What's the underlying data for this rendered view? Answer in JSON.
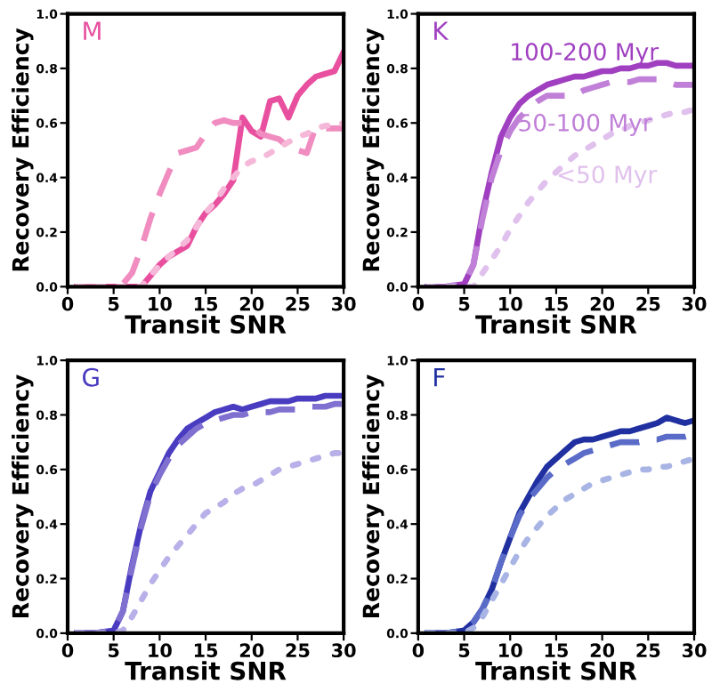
{
  "chart_data": [
    {
      "type": "line",
      "annotations": [
        "M"
      ],
      "xlabel": "Transit SNR",
      "ylabel": "Recovery Efficiency",
      "xlim": [
        0,
        30
      ],
      "xticks": [
        0,
        5,
        10,
        15,
        20,
        25,
        30
      ],
      "ylim": [
        0,
        1
      ],
      "yticks": [
        {
          "value": 0,
          "label": "0.0"
        },
        {
          "value": 0.2,
          "label": "0.2"
        },
        {
          "value": 0.4,
          "label": "0.4"
        },
        {
          "value": 0.6,
          "label": "0.6"
        },
        {
          "value": 0.8,
          "label": "0.8"
        },
        {
          "value": 1,
          "label": "1.0"
        }
      ],
      "grid": false,
      "marker": "none",
      "x": [
        1,
        3,
        5,
        6,
        7,
        8,
        9,
        10,
        11,
        12,
        13,
        14,
        15,
        16,
        17,
        18,
        19,
        20,
        21,
        22,
        23,
        24,
        25,
        26,
        27,
        28,
        29,
        30
      ],
      "series": [
        {
          "color": "#e8509f",
          "line_style": "solid",
          "values": [
            0,
            0,
            0,
            0,
            0,
            0,
            0.04,
            0.08,
            0.11,
            0.13,
            0.15,
            0.22,
            0.27,
            0.3,
            0.34,
            0.39,
            0.62,
            0.57,
            0.55,
            0.68,
            0.69,
            0.62,
            0.7,
            0.74,
            0.77,
            0.78,
            0.79,
            0.86
          ]
        },
        {
          "color": "#f08cc0",
          "line_style": "dashed",
          "values": [
            0,
            0,
            0,
            0.01,
            0.05,
            0.14,
            0.25,
            0.34,
            0.42,
            0.49,
            0.5,
            0.51,
            0.56,
            0.6,
            0.61,
            0.6,
            0.6,
            0.59,
            0.56,
            0.55,
            0.54,
            0.51,
            0.5,
            0.49,
            0.59,
            0.58,
            0.58,
            0.58
          ]
        },
        {
          "color": "#f5b8d8",
          "line_style": "dotted",
          "values": [
            0,
            0,
            0,
            0,
            0,
            0,
            0.04,
            0.08,
            0.11,
            0.14,
            0.17,
            0.22,
            0.27,
            0.31,
            0.36,
            0.4,
            0.44,
            0.46,
            0.47,
            0.49,
            0.51,
            0.53,
            0.55,
            0.56,
            0.58,
            0.59,
            0.59,
            0.6
          ]
        }
      ]
    },
    {
      "type": "line",
      "annotations": [
        "K"
      ],
      "xlabel": "Transit SNR",
      "ylabel": "Recovery Efficiency",
      "xlim": [
        0,
        30
      ],
      "xticks": [
        0,
        5,
        10,
        15,
        20,
        25,
        30
      ],
      "ylim": [
        0,
        1
      ],
      "yticks": [
        {
          "value": 0,
          "label": "0.0"
        },
        {
          "value": 0.2,
          "label": "0.2"
        },
        {
          "value": 0.4,
          "label": "0.4"
        },
        {
          "value": 0.6,
          "label": "0.6"
        },
        {
          "value": 0.8,
          "label": "0.8"
        },
        {
          "value": 1,
          "label": "1.0"
        }
      ],
      "grid": false,
      "marker": "none",
      "x": [
        1,
        3,
        5,
        6,
        7,
        8,
        9,
        10,
        11,
        12,
        13,
        14,
        15,
        16,
        17,
        18,
        19,
        20,
        21,
        22,
        23,
        24,
        25,
        26,
        27,
        28,
        29,
        30
      ],
      "series": [
        {
          "name": "100-200 Myr",
          "color": "#a040c0",
          "line_style": "solid",
          "values": [
            0,
            0,
            0.01,
            0.08,
            0.27,
            0.42,
            0.55,
            0.62,
            0.67,
            0.7,
            0.72,
            0.74,
            0.75,
            0.76,
            0.77,
            0.77,
            0.78,
            0.79,
            0.79,
            0.8,
            0.8,
            0.81,
            0.81,
            0.82,
            0.82,
            0.81,
            0.81,
            0.81
          ]
        },
        {
          "name": "50-100 Myr",
          "color": "#c080d8",
          "line_style": "dashed",
          "values": [
            0,
            0,
            0.01,
            0.08,
            0.25,
            0.4,
            0.5,
            0.57,
            0.62,
            0.65,
            0.68,
            0.7,
            0.7,
            0.7,
            0.7,
            0.72,
            0.73,
            0.74,
            0.75,
            0.75,
            0.75,
            0.76,
            0.76,
            0.76,
            0.75,
            0.74,
            0.74,
            0.74
          ]
        },
        {
          "name": "<50 Myr",
          "color": "#e0c0ec",
          "line_style": "dotted",
          "values": [
            0,
            0,
            0,
            0,
            0.05,
            0.1,
            0.15,
            0.21,
            0.26,
            0.31,
            0.35,
            0.39,
            0.42,
            0.45,
            0.48,
            0.5,
            0.52,
            0.54,
            0.56,
            0.57,
            0.59,
            0.6,
            0.61,
            0.62,
            0.63,
            0.64,
            0.64,
            0.65
          ]
        }
      ]
    },
    {
      "type": "line",
      "annotations": [
        "G"
      ],
      "xlabel": "Transit SNR",
      "ylabel": "Recovery Efficiency",
      "xlim": [
        0,
        30
      ],
      "xticks": [
        0,
        5,
        10,
        15,
        20,
        25,
        30
      ],
      "ylim": [
        0,
        1
      ],
      "yticks": [
        {
          "value": 0,
          "label": "0.0"
        },
        {
          "value": 0.2,
          "label": "0.2"
        },
        {
          "value": 0.4,
          "label": "0.4"
        },
        {
          "value": 0.6,
          "label": "0.6"
        },
        {
          "value": 0.8,
          "label": "0.8"
        },
        {
          "value": 1,
          "label": "1.0"
        }
      ],
      "grid": false,
      "marker": "none",
      "x": [
        1,
        3,
        5,
        6,
        7,
        8,
        9,
        10,
        11,
        12,
        13,
        14,
        15,
        16,
        17,
        18,
        19,
        20,
        21,
        22,
        23,
        24,
        25,
        26,
        27,
        28,
        29,
        30
      ],
      "series": [
        {
          "color": "#4a3cc0",
          "line_style": "solid",
          "values": [
            0,
            0,
            0.01,
            0.08,
            0.25,
            0.4,
            0.52,
            0.59,
            0.66,
            0.71,
            0.75,
            0.77,
            0.79,
            0.81,
            0.82,
            0.83,
            0.82,
            0.83,
            0.84,
            0.85,
            0.85,
            0.85,
            0.86,
            0.86,
            0.86,
            0.87,
            0.87,
            0.87
          ]
        },
        {
          "color": "#8070d0",
          "line_style": "dashed",
          "values": [
            0,
            0,
            0.01,
            0.08,
            0.24,
            0.39,
            0.51,
            0.58,
            0.64,
            0.69,
            0.72,
            0.75,
            0.77,
            0.78,
            0.79,
            0.8,
            0.8,
            0.81,
            0.81,
            0.81,
            0.82,
            0.82,
            0.82,
            0.83,
            0.83,
            0.83,
            0.84,
            0.84
          ]
        },
        {
          "color": "#b8b0e8",
          "line_style": "dotted",
          "values": [
            0,
            0,
            0,
            0.01,
            0.06,
            0.12,
            0.18,
            0.23,
            0.28,
            0.32,
            0.36,
            0.4,
            0.44,
            0.46,
            0.48,
            0.51,
            0.53,
            0.54,
            0.56,
            0.58,
            0.6,
            0.61,
            0.62,
            0.63,
            0.64,
            0.65,
            0.66,
            0.66
          ]
        }
      ]
    },
    {
      "type": "line",
      "annotations": [
        "F"
      ],
      "xlabel": "Transit SNR",
      "ylabel": "Recovery Efficiency",
      "xlim": [
        0,
        30
      ],
      "xticks": [
        0,
        5,
        10,
        15,
        20,
        25,
        30
      ],
      "ylim": [
        0,
        1
      ],
      "yticks": [
        {
          "value": 0,
          "label": "0.0"
        },
        {
          "value": 0.2,
          "label": "0.2"
        },
        {
          "value": 0.4,
          "label": "0.4"
        },
        {
          "value": 0.6,
          "label": "0.6"
        },
        {
          "value": 0.8,
          "label": "0.8"
        },
        {
          "value": 1,
          "label": "1.0"
        }
      ],
      "grid": false,
      "marker": "none",
      "x": [
        1,
        3,
        5,
        6,
        7,
        8,
        9,
        10,
        11,
        12,
        13,
        14,
        15,
        16,
        17,
        18,
        19,
        20,
        21,
        22,
        23,
        24,
        25,
        26,
        27,
        28,
        29,
        30
      ],
      "series": [
        {
          "color": "#2030a0",
          "line_style": "solid",
          "values": [
            0,
            0,
            0.01,
            0.04,
            0.09,
            0.16,
            0.26,
            0.35,
            0.44,
            0.5,
            0.56,
            0.61,
            0.64,
            0.67,
            0.7,
            0.71,
            0.71,
            0.72,
            0.73,
            0.74,
            0.74,
            0.75,
            0.76,
            0.77,
            0.79,
            0.78,
            0.77,
            0.78
          ]
        },
        {
          "color": "#5a6cc8",
          "line_style": "dashed",
          "values": [
            0,
            0,
            0.01,
            0.04,
            0.09,
            0.16,
            0.26,
            0.35,
            0.43,
            0.49,
            0.53,
            0.57,
            0.6,
            0.62,
            0.64,
            0.66,
            0.67,
            0.68,
            0.69,
            0.7,
            0.7,
            0.7,
            0.71,
            0.71,
            0.72,
            0.72,
            0.72,
            0.73
          ]
        },
        {
          "color": "#a8b4e4",
          "line_style": "dotted",
          "values": [
            0,
            0,
            0,
            0.02,
            0.06,
            0.12,
            0.18,
            0.24,
            0.3,
            0.35,
            0.39,
            0.43,
            0.46,
            0.49,
            0.51,
            0.53,
            0.55,
            0.56,
            0.57,
            0.58,
            0.59,
            0.6,
            0.6,
            0.61,
            0.61,
            0.62,
            0.63,
            0.64
          ]
        }
      ]
    }
  ]
}
